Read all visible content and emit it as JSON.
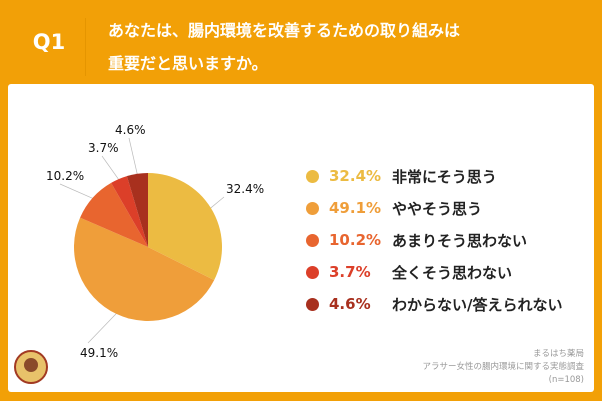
{
  "header": {
    "question_number": "Q1",
    "title_line1": "あなたは、腸内環境を改善するための取り組みは",
    "title_line2": "重要だと思いますか。"
  },
  "chart_data": {
    "type": "pie",
    "categories": [
      "非常にそう思う",
      "ややそう思う",
      "あまりそう思わない",
      "全くそう思わない",
      "わからない/答えられない"
    ],
    "values": [
      32.4,
      49.1,
      10.2,
      3.7,
      4.6
    ],
    "data_labels": [
      "32.4%",
      "49.1%",
      "10.2%",
      "3.7%",
      "4.6%"
    ],
    "colors": [
      "#ECBB42",
      "#EF9E3A",
      "#E8652F",
      "#DC3F29",
      "#A8301E"
    ],
    "start_angle": "12 o'clock, clockwise",
    "legend_placement": "right"
  },
  "footnote": {
    "source": "まるはち薬局",
    "survey": "アラサー女性の腸内環境に関する実態調査",
    "sample": "(n=108)"
  },
  "logo": {
    "name": "pharmacy-logo"
  }
}
